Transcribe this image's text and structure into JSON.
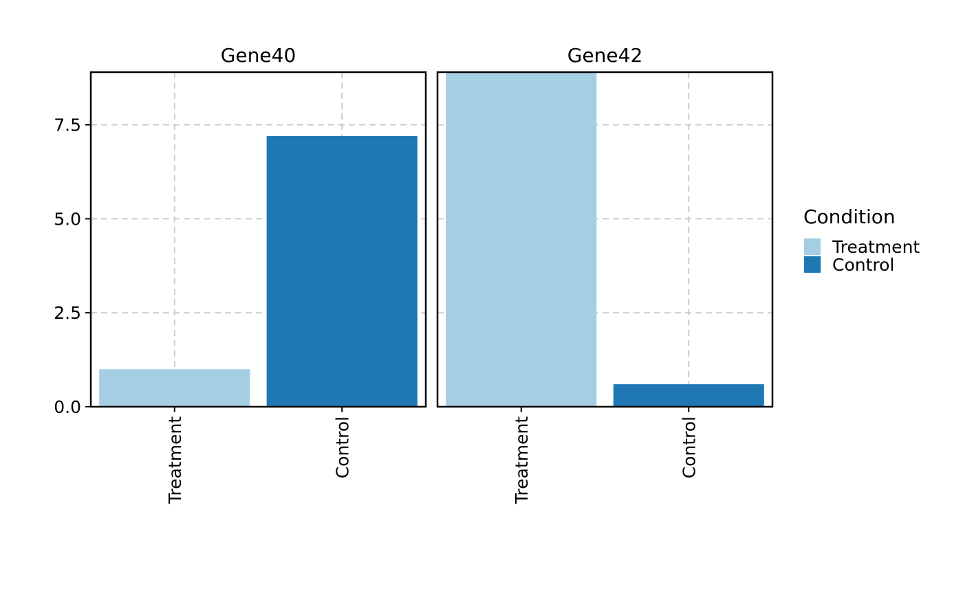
{
  "chart_data": {
    "type": "bar",
    "categories": [
      "Treatment",
      "Control"
    ],
    "ylim": [
      0,
      8.9
    ],
    "y_ticks": [
      0,
      2.5,
      5,
      7.5
    ],
    "y_tick_labels": [
      "0.0",
      "2.5",
      "5.0",
      "7.5"
    ],
    "grid": true,
    "panels": [
      {
        "title": "Gene40",
        "values": [
          1.0,
          7.2
        ]
      },
      {
        "title": "Gene42",
        "values": [
          9.0,
          0.6
        ]
      }
    ],
    "legend": {
      "title": "Condition",
      "placement": "right",
      "entries": [
        {
          "label": "Treatment",
          "color": "#a6cee3"
        },
        {
          "label": "Control",
          "color": "#1f78b4"
        }
      ]
    }
  }
}
